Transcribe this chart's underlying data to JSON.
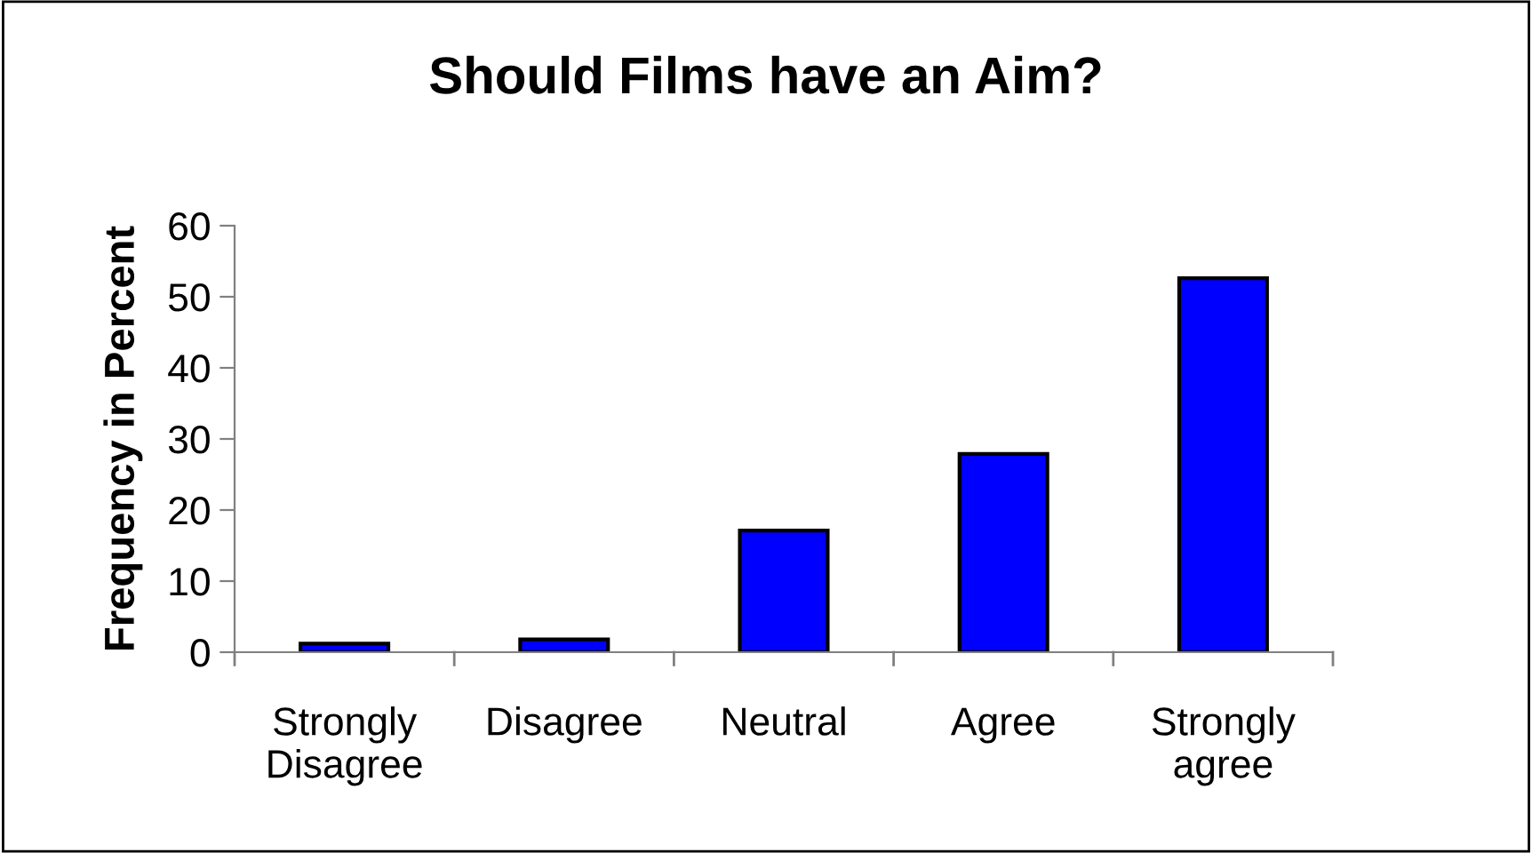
{
  "chart_data": {
    "type": "bar",
    "title": "Should Films have an Aim?",
    "ylabel": "Frequency in Percent",
    "categories": [
      "Strongly\nDisagree",
      "Disagree",
      "Neutral",
      "Agree",
      "Strongly\nagree"
    ],
    "values": [
      1.2,
      1.8,
      17.1,
      27.9,
      52.6
    ],
    "color": "#0000ff",
    "ylim": [
      0,
      60
    ],
    "yticks": [
      0,
      10,
      20,
      30,
      40,
      50,
      60
    ],
    "grid": false,
    "legend": false
  }
}
